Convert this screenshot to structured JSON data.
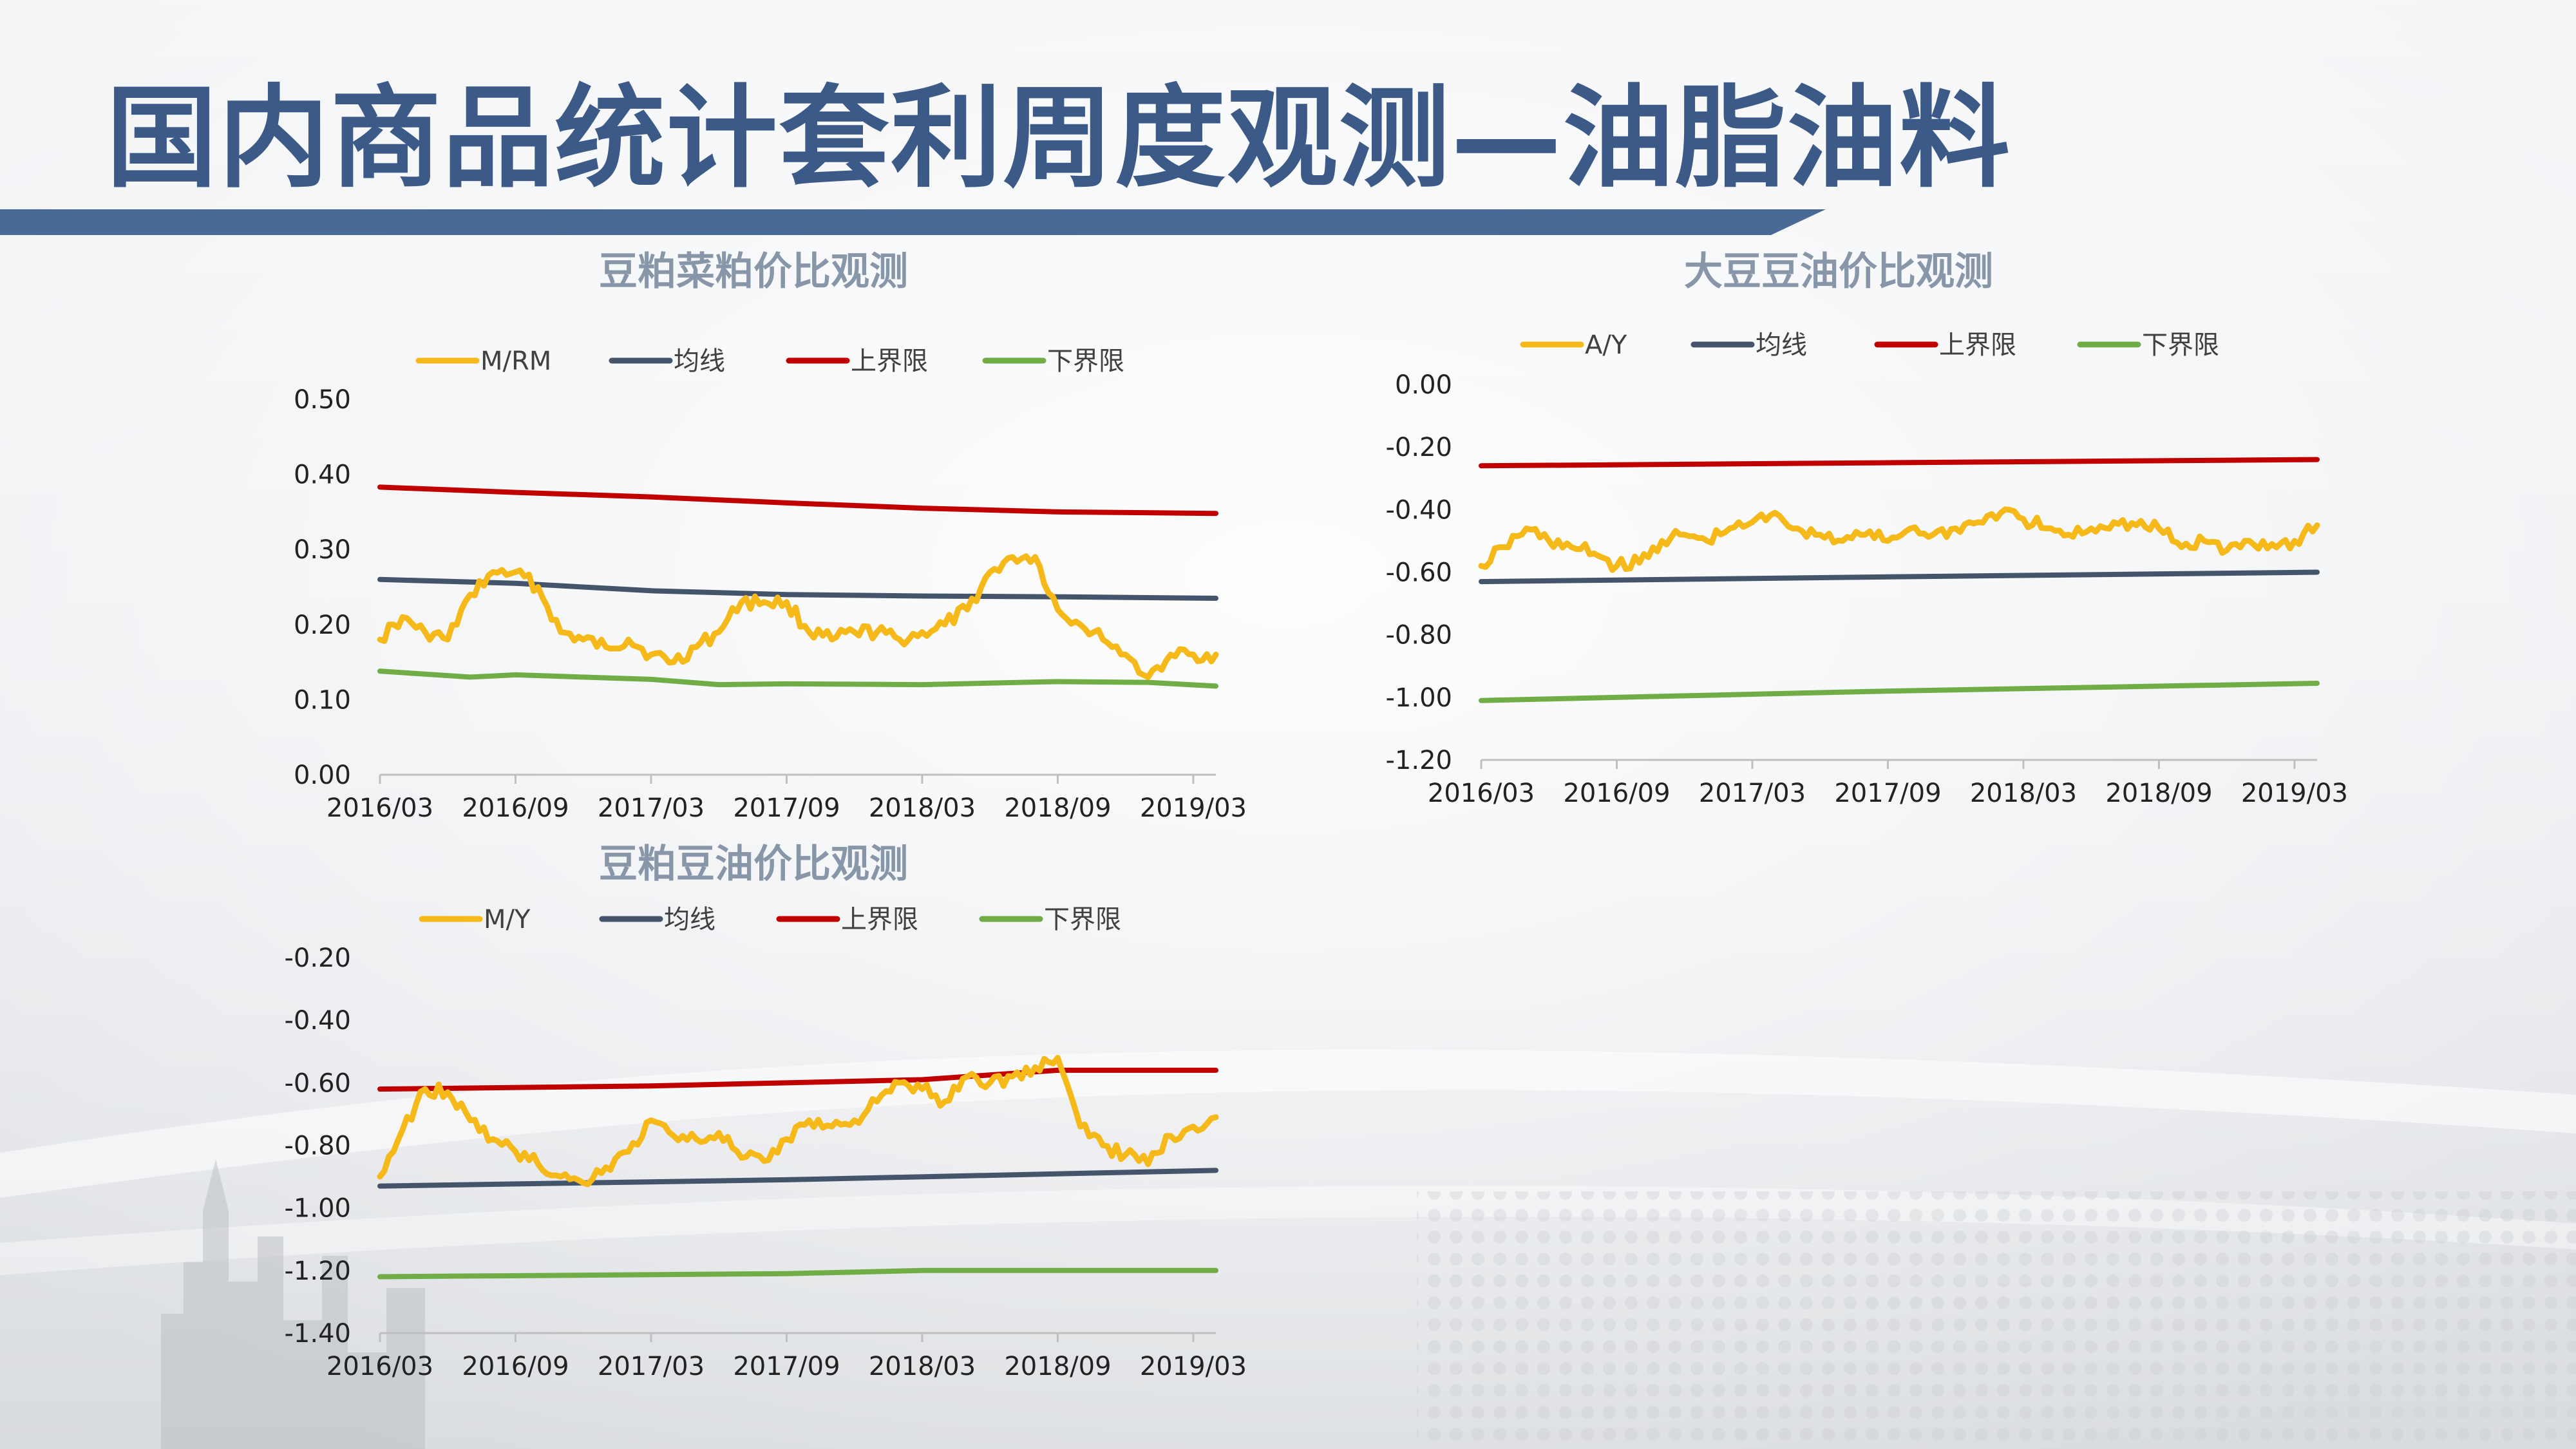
{
  "page": {
    "title": "国内商品统计套利周度观测—油脂油料"
  },
  "colors": {
    "title": "#3c5a87",
    "title_band": "#4a6a96",
    "ratio": "#f6b91a",
    "mean": "#44546a",
    "upper": "#c00000",
    "lower": "#70ad47",
    "chart_title": "#8796a8"
  },
  "chart_data": [
    {
      "id": "meal",
      "type": "line",
      "title": "豆粕菜粕价比观测",
      "x_ticks": [
        "2016/03",
        "2016/09",
        "2017/03",
        "2017/09",
        "2018/03",
        "2018/09",
        "2019/03"
      ],
      "x_range": [
        "2016/03",
        "2019/04"
      ],
      "y_ticks": [
        "0.50",
        "0.40",
        "0.30",
        "0.20",
        "0.10",
        "0.00"
      ],
      "ylim": [
        0.0,
        0.5
      ],
      "legend_position": "top",
      "grid": false,
      "series": [
        {
          "name": "M/RM",
          "color": "#f6b91a",
          "values": [
            [
              "2016/03",
              0.18
            ],
            [
              "2016/04",
              0.21
            ],
            [
              "2016/05",
              0.19
            ],
            [
              "2016/06",
              0.18
            ],
            [
              "2016/07",
              0.24
            ],
            [
              "2016/08",
              0.27
            ],
            [
              "2016/09",
              0.27
            ],
            [
              "2016/10",
              0.25
            ],
            [
              "2016/11",
              0.19
            ],
            [
              "2016/12",
              0.18
            ],
            [
              "2017/01",
              0.17
            ],
            [
              "2017/02",
              0.18
            ],
            [
              "2017/03",
              0.16
            ],
            [
              "2017/04",
              0.15
            ],
            [
              "2017/05",
              0.17
            ],
            [
              "2017/06",
              0.19
            ],
            [
              "2017/07",
              0.23
            ],
            [
              "2017/08",
              0.23
            ],
            [
              "2017/09",
              0.23
            ],
            [
              "2017/10",
              0.19
            ],
            [
              "2017/11",
              0.18
            ],
            [
              "2017/12",
              0.19
            ],
            [
              "2018/01",
              0.19
            ],
            [
              "2018/02",
              0.18
            ],
            [
              "2018/03",
              0.19
            ],
            [
              "2018/04",
              0.2
            ],
            [
              "2018/05",
              0.22
            ],
            [
              "2018/06",
              0.27
            ],
            [
              "2018/07",
              0.29
            ],
            [
              "2018/08",
              0.29
            ],
            [
              "2018/09",
              0.22
            ],
            [
              "2018/10",
              0.2
            ],
            [
              "2018/11",
              0.18
            ],
            [
              "2018/12",
              0.16
            ],
            [
              "2019/01",
              0.13
            ],
            [
              "2019/02",
              0.16
            ],
            [
              "2019/03",
              0.16
            ],
            [
              "2019/04",
              0.16
            ]
          ]
        },
        {
          "name": "均线",
          "color": "#44546a",
          "values": [
            [
              "2016/03",
              0.26
            ],
            [
              "2016/09",
              0.255
            ],
            [
              "2017/03",
              0.245
            ],
            [
              "2017/09",
              0.24
            ],
            [
              "2018/03",
              0.238
            ],
            [
              "2018/09",
              0.237
            ],
            [
              "2019/04",
              0.235
            ]
          ]
        },
        {
          "name": "上界限",
          "color": "#c00000",
          "values": [
            [
              "2016/03",
              0.383
            ],
            [
              "2016/09",
              0.376
            ],
            [
              "2017/03",
              0.37
            ],
            [
              "2017/09",
              0.362
            ],
            [
              "2018/03",
              0.355
            ],
            [
              "2018/09",
              0.35
            ],
            [
              "2019/04",
              0.348
            ]
          ]
        },
        {
          "name": "下界限",
          "color": "#70ad47",
          "values": [
            [
              "2016/03",
              0.138
            ],
            [
              "2016/07",
              0.13
            ],
            [
              "2016/09",
              0.133
            ],
            [
              "2017/03",
              0.127
            ],
            [
              "2017/06",
              0.12
            ],
            [
              "2017/09",
              0.121
            ],
            [
              "2018/03",
              0.12
            ],
            [
              "2018/09",
              0.124
            ],
            [
              "2019/01",
              0.123
            ],
            [
              "2019/04",
              0.118
            ]
          ]
        }
      ]
    },
    {
      "id": "soy",
      "type": "line",
      "title": "大豆豆油价比观测",
      "x_ticks": [
        "2016/03",
        "2016/09",
        "2017/03",
        "2017/09",
        "2018/03",
        "2018/09",
        "2019/03"
      ],
      "x_range": [
        "2016/03",
        "2019/04"
      ],
      "y_ticks": [
        "0.00",
        "-0.20",
        "-0.40",
        "-0.60",
        "-0.80",
        "-1.00",
        "-1.20"
      ],
      "ylim": [
        -1.2,
        0.0
      ],
      "legend_position": "top",
      "grid": false,
      "series": [
        {
          "name": "A/Y",
          "color": "#f6b91a",
          "values": [
            [
              "2016/03",
              -0.58
            ],
            [
              "2016/04",
              -0.52
            ],
            [
              "2016/05",
              -0.46
            ],
            [
              "2016/06",
              -0.5
            ],
            [
              "2016/07",
              -0.52
            ],
            [
              "2016/08",
              -0.54
            ],
            [
              "2016/09",
              -0.58
            ],
            [
              "2016/10",
              -0.57
            ],
            [
              "2016/11",
              -0.5
            ],
            [
              "2016/12",
              -0.48
            ],
            [
              "2017/01",
              -0.5
            ],
            [
              "2017/02",
              -0.46
            ],
            [
              "2017/03",
              -0.44
            ],
            [
              "2017/04",
              -0.41
            ],
            [
              "2017/05",
              -0.46
            ],
            [
              "2017/06",
              -0.48
            ],
            [
              "2017/07",
              -0.5
            ],
            [
              "2017/08",
              -0.48
            ],
            [
              "2017/09",
              -0.5
            ],
            [
              "2017/10",
              -0.46
            ],
            [
              "2017/11",
              -0.48
            ],
            [
              "2017/12",
              -0.46
            ],
            [
              "2018/01",
              -0.44
            ],
            [
              "2018/02",
              -0.41
            ],
            [
              "2018/03",
              -0.43
            ],
            [
              "2018/04",
              -0.46
            ],
            [
              "2018/05",
              -0.48
            ],
            [
              "2018/06",
              -0.46
            ],
            [
              "2018/07",
              -0.44
            ],
            [
              "2018/08",
              -0.45
            ],
            [
              "2018/09",
              -0.46
            ],
            [
              "2018/10",
              -0.52
            ],
            [
              "2018/11",
              -0.5
            ],
            [
              "2018/12",
              -0.53
            ],
            [
              "2019/01",
              -0.5
            ],
            [
              "2019/02",
              -0.51
            ],
            [
              "2019/03",
              -0.5
            ],
            [
              "2019/04",
              -0.45
            ]
          ]
        },
        {
          "name": "均线",
          "color": "#44546a",
          "values": [
            [
              "2016/03",
              -0.63
            ],
            [
              "2017/09",
              -0.615
            ],
            [
              "2019/04",
              -0.6
            ]
          ]
        },
        {
          "name": "上界限",
          "color": "#c00000",
          "values": [
            [
              "2016/03",
              -0.26
            ],
            [
              "2017/09",
              -0.25
            ],
            [
              "2019/04",
              -0.24
            ]
          ]
        },
        {
          "name": "下界限",
          "color": "#70ad47",
          "values": [
            [
              "2016/03",
              -1.01
            ],
            [
              "2017/09",
              -0.98
            ],
            [
              "2019/04",
              -0.955
            ]
          ]
        }
      ]
    },
    {
      "id": "meal_oil",
      "type": "line",
      "title": "豆粕豆油价比观测",
      "x_ticks": [
        "2016/03",
        "2016/09",
        "2017/03",
        "2017/09",
        "2018/03",
        "2018/09",
        "2019/03"
      ],
      "x_range": [
        "2016/03",
        "2019/04"
      ],
      "y_ticks": [
        "-0.20",
        "-0.40",
        "-0.60",
        "-0.80",
        "-1.00",
        "-1.20",
        "-1.40"
      ],
      "ylim": [
        -1.4,
        -0.2
      ],
      "legend_position": "top",
      "grid": false,
      "series": [
        {
          "name": "M/Y",
          "color": "#f6b91a",
          "values": [
            [
              "2016/03",
              -0.9
            ],
            [
              "2016/04",
              -0.75
            ],
            [
              "2016/05",
              -0.62
            ],
            [
              "2016/06",
              -0.63
            ],
            [
              "2016/07",
              -0.72
            ],
            [
              "2016/08",
              -0.78
            ],
            [
              "2016/09",
              -0.82
            ],
            [
              "2016/10",
              -0.86
            ],
            [
              "2016/11",
              -0.9
            ],
            [
              "2016/12",
              -0.92
            ],
            [
              "2017/01",
              -0.87
            ],
            [
              "2017/02",
              -0.82
            ],
            [
              "2017/03",
              -0.72
            ],
            [
              "2017/04",
              -0.77
            ],
            [
              "2017/05",
              -0.78
            ],
            [
              "2017/06",
              -0.76
            ],
            [
              "2017/07",
              -0.84
            ],
            [
              "2017/08",
              -0.85
            ],
            [
              "2017/09",
              -0.78
            ],
            [
              "2017/10",
              -0.72
            ],
            [
              "2017/11",
              -0.74
            ],
            [
              "2017/12",
              -0.72
            ],
            [
              "2018/01",
              -0.66
            ],
            [
              "2018/02",
              -0.6
            ],
            [
              "2018/03",
              -0.62
            ],
            [
              "2018/04",
              -0.66
            ],
            [
              "2018/05",
              -0.58
            ],
            [
              "2018/06",
              -0.6
            ],
            [
              "2018/07",
              -0.58
            ],
            [
              "2018/08",
              -0.55
            ],
            [
              "2018/09",
              -0.52
            ],
            [
              "2018/10",
              -0.74
            ],
            [
              "2018/11",
              -0.8
            ],
            [
              "2018/12",
              -0.83
            ],
            [
              "2019/01",
              -0.86
            ],
            [
              "2019/02",
              -0.77
            ],
            [
              "2019/03",
              -0.74
            ],
            [
              "2019/04",
              -0.71
            ]
          ]
        },
        {
          "name": "均线",
          "color": "#44546a",
          "values": [
            [
              "2016/03",
              -0.93
            ],
            [
              "2017/09",
              -0.91
            ],
            [
              "2019/04",
              -0.88
            ]
          ]
        },
        {
          "name": "上界限",
          "color": "#c00000",
          "values": [
            [
              "2016/03",
              -0.62
            ],
            [
              "2017/03",
              -0.61
            ],
            [
              "2018/03",
              -0.59
            ],
            [
              "2018/09",
              -0.56
            ],
            [
              "2019/04",
              -0.56
            ]
          ]
        },
        {
          "name": "下界限",
          "color": "#70ad47",
          "values": [
            [
              "2016/03",
              -1.22
            ],
            [
              "2017/09",
              -1.21
            ],
            [
              "2018/03",
              -1.2
            ],
            [
              "2019/04",
              -1.2
            ]
          ]
        }
      ]
    }
  ]
}
